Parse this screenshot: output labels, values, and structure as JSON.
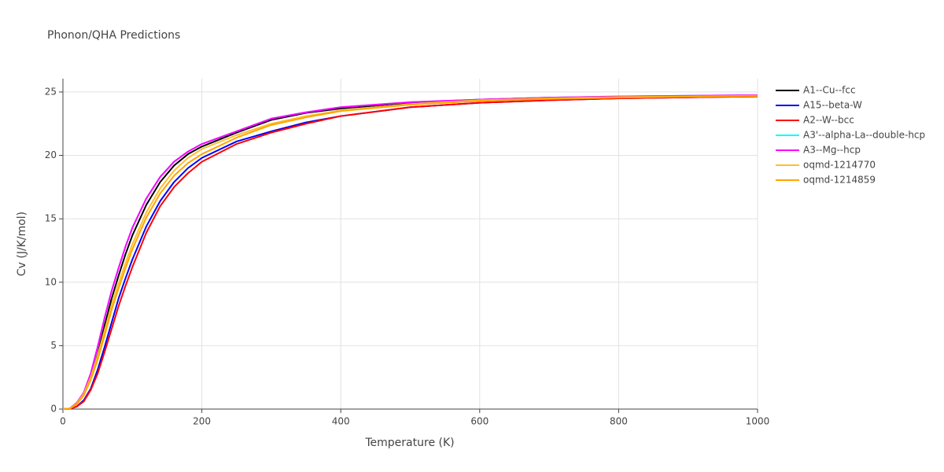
{
  "chart_data": {
    "type": "line",
    "title": "Phonon/QHA Predictions",
    "x_label": "Temperature (K)",
    "y_label": "Cv (J/K/mol)",
    "x": [
      0,
      10,
      20,
      30,
      40,
      50,
      60,
      70,
      80,
      90,
      100,
      120,
      140,
      160,
      180,
      200,
      250,
      300,
      350,
      400,
      500,
      600,
      700,
      800,
      900,
      1000
    ],
    "series": [
      {
        "name": "A1--Cu--fcc",
        "color": "#000000",
        "values": [
          0,
          0.04,
          0.4,
          1.1,
          2.4,
          4.3,
          6.6,
          8.7,
          10.5,
          12.2,
          13.7,
          16.1,
          17.9,
          19.2,
          20.1,
          20.7,
          21.8,
          22.8,
          23.35,
          23.7,
          24.15,
          24.4,
          24.55,
          24.62,
          24.68,
          24.72
        ]
      },
      {
        "name": "A15--beta-W",
        "color": "#0000ff",
        "values": [
          0,
          0.02,
          0.2,
          0.7,
          1.6,
          3.1,
          4.9,
          6.8,
          8.7,
          10.3,
          11.8,
          14.4,
          16.4,
          17.9,
          19.0,
          19.8,
          21.1,
          21.9,
          22.6,
          23.1,
          23.8,
          24.15,
          24.35,
          24.5,
          24.58,
          24.65
        ]
      },
      {
        "name": "A2--W--bcc",
        "color": "#ff0000",
        "values": [
          0,
          0.02,
          0.2,
          0.6,
          1.5,
          2.8,
          4.5,
          6.3,
          8.1,
          9.7,
          11.2,
          13.9,
          16.0,
          17.5,
          18.6,
          19.5,
          20.9,
          21.8,
          22.5,
          23.1,
          23.8,
          24.15,
          24.35,
          24.5,
          24.58,
          24.65
        ]
      },
      {
        "name": "A3'--alpha-La--double-hcp",
        "color": "#00ffff",
        "values": [
          0,
          0.05,
          0.5,
          1.3,
          2.8,
          4.9,
          7.2,
          9.3,
          11.1,
          12.8,
          14.3,
          16.6,
          18.3,
          19.5,
          20.3,
          20.9,
          21.9,
          22.9,
          23.4,
          23.8,
          24.2,
          24.4,
          24.55,
          24.65,
          24.7,
          24.75
        ]
      },
      {
        "name": "A3--Mg--hcp",
        "color": "#ff00ff",
        "values": [
          0,
          0.05,
          0.5,
          1.3,
          2.8,
          4.9,
          7.2,
          9.3,
          11.1,
          12.8,
          14.3,
          16.6,
          18.3,
          19.5,
          20.3,
          20.9,
          21.9,
          22.9,
          23.4,
          23.8,
          24.2,
          24.4,
          24.55,
          24.65,
          24.7,
          24.75
        ]
      },
      {
        "name": "oqmd-1214770",
        "color": "#fdbf2d",
        "values": [
          0,
          0.04,
          0.45,
          1.2,
          2.5,
          4.2,
          6.2,
          8.2,
          9.9,
          11.5,
          13.0,
          15.5,
          17.4,
          18.8,
          19.8,
          20.5,
          21.6,
          22.5,
          23.1,
          23.55,
          24.05,
          24.35,
          24.5,
          24.6,
          24.65,
          24.7
        ]
      },
      {
        "name": "oqmd-1214859",
        "color": "#ffa500",
        "values": [
          0,
          0.03,
          0.4,
          1.1,
          2.3,
          3.9,
          5.8,
          7.8,
          9.5,
          11.1,
          12.6,
          15.1,
          17.0,
          18.4,
          19.4,
          20.1,
          21.4,
          22.4,
          23.0,
          23.5,
          24.0,
          24.3,
          24.45,
          24.55,
          24.62,
          24.68
        ]
      }
    ],
    "xlim": [
      0,
      1000
    ],
    "xticks": [
      0,
      200,
      400,
      600,
      800,
      1000
    ],
    "ylim": [
      0,
      26.05
    ],
    "yticks": [
      0,
      5,
      10,
      15,
      20,
      25
    ],
    "grid": true,
    "legend": "right"
  }
}
